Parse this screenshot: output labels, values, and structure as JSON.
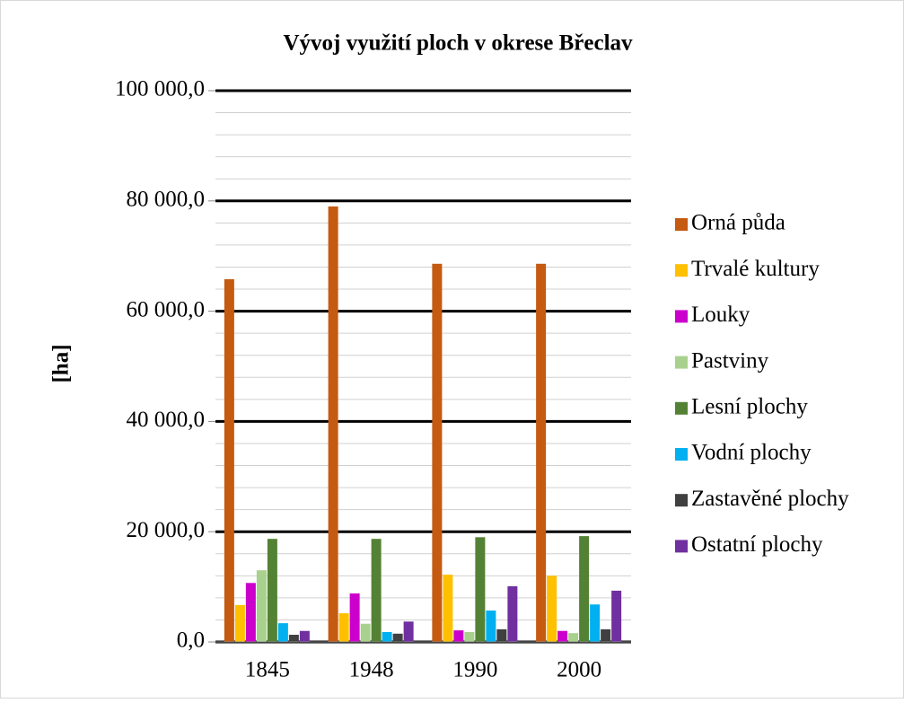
{
  "chart_data": {
    "type": "bar",
    "title": "Vývoj využití ploch v okrese Břeclav",
    "y_label": "[ha]",
    "categories": [
      "1845",
      "1948",
      "1990",
      "2000"
    ],
    "series": [
      {
        "name": "Orná půda",
        "color": "#c55a11",
        "values": [
          65800,
          79000,
          68600,
          68600
        ]
      },
      {
        "name": "Trvalé kultury",
        "color": "#ffc000",
        "values": [
          6700,
          5200,
          12200,
          12000
        ]
      },
      {
        "name": "Louky",
        "color": "#cc00cc",
        "values": [
          10700,
          8800,
          2100,
          2000
        ]
      },
      {
        "name": "Pastviny",
        "color": "#a9d18e",
        "values": [
          13000,
          3300,
          1800,
          1600
        ]
      },
      {
        "name": "Lesní plochy",
        "color": "#548235",
        "values": [
          18700,
          18700,
          19000,
          19200
        ]
      },
      {
        "name": "Vodní plochy",
        "color": "#00b0f0",
        "values": [
          3400,
          1800,
          5700,
          6800
        ]
      },
      {
        "name": "Zastavěné plochy",
        "color": "#404040",
        "values": [
          1300,
          1500,
          2300,
          2300
        ]
      },
      {
        "name": "Ostatní plochy",
        "color": "#7030a0",
        "values": [
          2000,
          3700,
          10100,
          9300
        ]
      }
    ],
    "ylim": [
      0,
      100000
    ],
    "yticks": [
      {
        "value": 0,
        "label": "0,0"
      },
      {
        "value": 20000,
        "label": "20 000,0"
      },
      {
        "value": 40000,
        "label": "40 000,0"
      },
      {
        "value": 60000,
        "label": "60 000,0"
      },
      {
        "value": 80000,
        "label": "80 000,0"
      },
      {
        "value": 100000,
        "label": "100 000,0"
      }
    ],
    "minor_yticks": [
      4000,
      8000,
      12000,
      16000,
      24000,
      28000,
      32000,
      36000,
      44000,
      48000,
      52000,
      56000,
      64000,
      68000,
      72000,
      76000,
      84000,
      88000,
      92000,
      96000
    ],
    "grid": true,
    "legend": "right"
  }
}
